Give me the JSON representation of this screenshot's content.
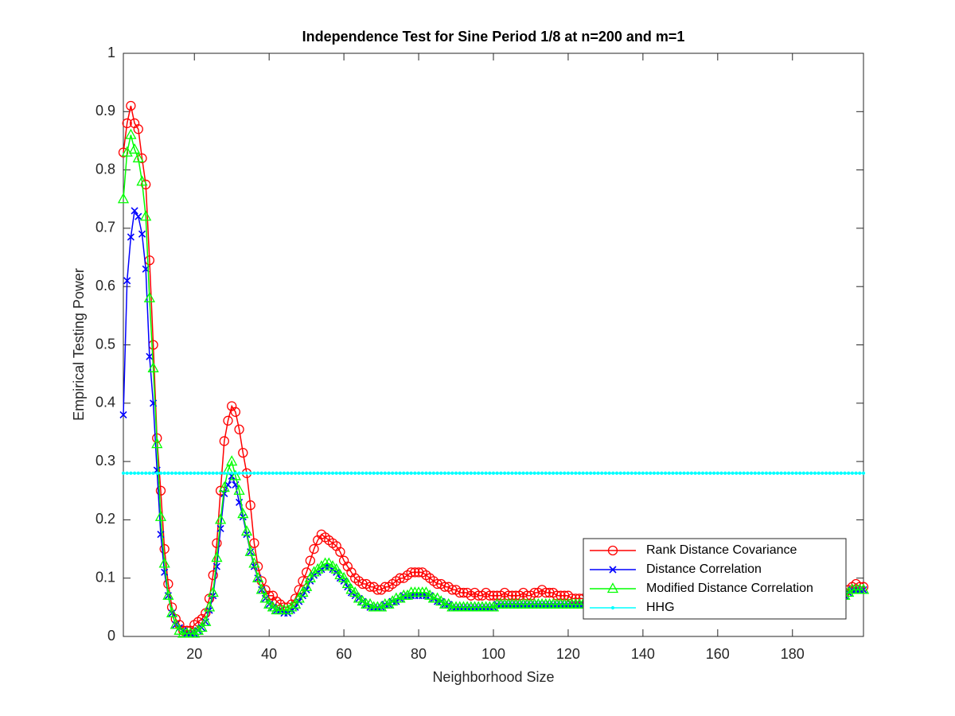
{
  "chart_data": {
    "type": "line",
    "title": "Independence Test for Sine Period 1/8 at n=200 and m=1",
    "xlabel": "Neighborhood Size",
    "ylabel": "Empirical Testing Power",
    "xlim": [
      1,
      199
    ],
    "ylim": [
      0,
      1
    ],
    "xticks": [
      20,
      40,
      60,
      80,
      100,
      120,
      140,
      160,
      180
    ],
    "yticks": [
      0,
      0.1,
      0.2,
      0.3,
      0.4,
      0.5,
      0.6,
      0.7,
      0.8,
      0.9,
      1
    ],
    "legend": "southeast",
    "x": [
      1,
      2,
      3,
      4,
      5,
      6,
      7,
      8,
      9,
      10,
      11,
      12,
      13,
      14,
      15,
      16,
      17,
      18,
      19,
      20,
      21,
      22,
      23,
      24,
      25,
      26,
      27,
      28,
      29,
      30,
      31,
      32,
      33,
      34,
      35,
      36,
      37,
      38,
      39,
      40,
      41,
      42,
      43,
      44,
      45,
      46,
      47,
      48,
      49,
      50,
      51,
      52,
      53,
      54,
      55,
      56,
      57,
      58,
      59,
      60,
      61,
      62,
      63,
      64,
      65,
      66,
      67,
      68,
      69,
      70,
      71,
      72,
      73,
      74,
      75,
      76,
      77,
      78,
      79,
      80,
      81,
      82,
      83,
      84,
      85,
      86,
      87,
      88,
      89,
      90,
      91,
      92,
      93,
      94,
      95,
      96,
      97,
      98,
      99,
      100,
      101,
      102,
      103,
      104,
      105,
      106,
      107,
      108,
      109,
      110,
      111,
      112,
      113,
      114,
      115,
      116,
      117,
      118,
      119,
      120,
      121,
      122,
      123,
      124,
      125,
      126,
      127,
      128,
      129,
      130,
      131,
      132,
      133,
      134,
      135,
      136,
      137,
      138,
      139,
      140,
      141,
      142,
      143,
      144,
      145,
      146,
      147,
      148,
      149,
      150,
      151,
      152,
      153,
      154,
      155,
      156,
      157,
      158,
      159,
      160,
      161,
      162,
      163,
      164,
      165,
      166,
      167,
      168,
      169,
      170,
      171,
      172,
      173,
      174,
      175,
      176,
      177,
      178,
      179,
      180,
      181,
      182,
      183,
      184,
      185,
      186,
      187,
      188,
      189,
      190,
      191,
      192,
      193,
      194,
      195,
      196,
      197,
      198,
      199
    ],
    "series": [
      {
        "name": "Rank Distance Covariance",
        "color": "#ff0000",
        "marker": "circle",
        "values": [
          0.83,
          0.88,
          0.91,
          0.88,
          0.87,
          0.82,
          0.775,
          0.645,
          0.5,
          0.34,
          0.25,
          0.15,
          0.09,
          0.05,
          0.03,
          0.02,
          0.01,
          0.01,
          0.01,
          0.02,
          0.025,
          0.03,
          0.04,
          0.065,
          0.105,
          0.16,
          0.25,
          0.335,
          0.37,
          0.395,
          0.385,
          0.355,
          0.315,
          0.28,
          0.225,
          0.16,
          0.12,
          0.095,
          0.08,
          0.07,
          0.07,
          0.06,
          0.055,
          0.05,
          0.05,
          0.055,
          0.065,
          0.08,
          0.095,
          0.11,
          0.13,
          0.15,
          0.165,
          0.175,
          0.17,
          0.165,
          0.16,
          0.155,
          0.145,
          0.13,
          0.12,
          0.11,
          0.1,
          0.095,
          0.09,
          0.09,
          0.085,
          0.085,
          0.08,
          0.08,
          0.085,
          0.085,
          0.09,
          0.095,
          0.1,
          0.1,
          0.105,
          0.11,
          0.11,
          0.11,
          0.11,
          0.105,
          0.1,
          0.095,
          0.09,
          0.09,
          0.085,
          0.085,
          0.08,
          0.08,
          0.075,
          0.075,
          0.075,
          0.07,
          0.075,
          0.07,
          0.07,
          0.075,
          0.07,
          0.07,
          0.07,
          0.07,
          0.075,
          0.07,
          0.07,
          0.07,
          0.07,
          0.075,
          0.07,
          0.07,
          0.075,
          0.075,
          0.08,
          0.075,
          0.075,
          0.075,
          0.07,
          0.07,
          0.07,
          0.07,
          0.065,
          0.065,
          0.065,
          0.065,
          0.06,
          0.06,
          0.06,
          0.06,
          0.06,
          0.06,
          0.06,
          0.06,
          0.06,
          0.06,
          0.06,
          0.06,
          0.06,
          0.06,
          0.06,
          0.06,
          0.06,
          0.06,
          0.06,
          0.06,
          0.06,
          0.06,
          0.06,
          0.06,
          0.06,
          0.06,
          0.06,
          0.06,
          0.06,
          0.06,
          0.06,
          0.06,
          0.06,
          0.06,
          0.06,
          0.06,
          0.065,
          0.065,
          0.065,
          0.065,
          0.065,
          0.065,
          0.065,
          0.065,
          0.065,
          0.065,
          0.065,
          0.065,
          0.065,
          0.065,
          0.065,
          0.065,
          0.065,
          0.065,
          0.065,
          0.065,
          0.07,
          0.07,
          0.07,
          0.07,
          0.07,
          0.07,
          0.07,
          0.07,
          0.07,
          0.07,
          0.07,
          0.07,
          0.075,
          0.075,
          0.08,
          0.085,
          0.09,
          0.085,
          0.085
        ]
      },
      {
        "name": "Distance Correlation",
        "color": "#0000ff",
        "marker": "cross",
        "values": [
          0.38,
          0.61,
          0.685,
          0.73,
          0.72,
          0.69,
          0.63,
          0.48,
          0.4,
          0.285,
          0.175,
          0.11,
          0.07,
          0.04,
          0.02,
          0.015,
          0.01,
          0.005,
          0.005,
          0.005,
          0.01,
          0.015,
          0.025,
          0.045,
          0.07,
          0.12,
          0.185,
          0.245,
          0.26,
          0.275,
          0.26,
          0.23,
          0.205,
          0.175,
          0.145,
          0.12,
          0.1,
          0.08,
          0.065,
          0.055,
          0.05,
          0.045,
          0.045,
          0.04,
          0.04,
          0.045,
          0.05,
          0.06,
          0.07,
          0.08,
          0.095,
          0.105,
          0.11,
          0.115,
          0.12,
          0.12,
          0.115,
          0.11,
          0.1,
          0.095,
          0.085,
          0.075,
          0.07,
          0.065,
          0.06,
          0.055,
          0.05,
          0.05,
          0.05,
          0.05,
          0.055,
          0.055,
          0.06,
          0.06,
          0.065,
          0.07,
          0.07,
          0.07,
          0.07,
          0.07,
          0.07,
          0.07,
          0.07,
          0.065,
          0.06,
          0.06,
          0.055,
          0.055,
          0.05,
          0.05,
          0.05,
          0.05,
          0.05,
          0.05,
          0.05,
          0.05,
          0.05,
          0.05,
          0.05,
          0.05,
          0.055,
          0.055,
          0.055,
          0.055,
          0.055,
          0.055,
          0.055,
          0.055,
          0.055,
          0.055,
          0.055,
          0.055,
          0.055,
          0.055,
          0.055,
          0.055,
          0.055,
          0.055,
          0.055,
          0.055,
          0.055,
          0.055,
          0.055,
          0.055,
          0.055,
          0.055,
          0.055,
          0.055,
          0.055,
          0.055,
          0.06,
          0.06,
          0.06,
          0.06,
          0.06,
          0.06,
          0.06,
          0.06,
          0.06,
          0.06,
          0.06,
          0.06,
          0.06,
          0.06,
          0.06,
          0.06,
          0.06,
          0.06,
          0.06,
          0.06,
          0.06,
          0.06,
          0.06,
          0.06,
          0.06,
          0.06,
          0.06,
          0.06,
          0.06,
          0.06,
          0.06,
          0.06,
          0.06,
          0.06,
          0.06,
          0.06,
          0.06,
          0.06,
          0.06,
          0.06,
          0.06,
          0.06,
          0.06,
          0.06,
          0.06,
          0.06,
          0.06,
          0.06,
          0.06,
          0.06,
          0.06,
          0.06,
          0.06,
          0.06,
          0.06,
          0.06,
          0.06,
          0.06,
          0.06,
          0.06,
          0.06,
          0.065,
          0.065,
          0.07,
          0.075,
          0.08,
          0.08,
          0.08,
          0.08
        ]
      },
      {
        "name": "Modified Distance Correlation",
        "color": "#00ff00",
        "marker": "triangle",
        "values": [
          0.75,
          0.83,
          0.86,
          0.835,
          0.82,
          0.78,
          0.72,
          0.58,
          0.46,
          0.33,
          0.205,
          0.125,
          0.07,
          0.04,
          0.02,
          0.01,
          0.005,
          0.005,
          0.005,
          0.005,
          0.01,
          0.015,
          0.025,
          0.05,
          0.075,
          0.135,
          0.2,
          0.255,
          0.285,
          0.3,
          0.275,
          0.25,
          0.21,
          0.18,
          0.145,
          0.125,
          0.1,
          0.08,
          0.065,
          0.055,
          0.05,
          0.045,
          0.045,
          0.045,
          0.045,
          0.05,
          0.055,
          0.065,
          0.075,
          0.085,
          0.1,
          0.11,
          0.115,
          0.12,
          0.125,
          0.125,
          0.12,
          0.115,
          0.105,
          0.1,
          0.09,
          0.08,
          0.075,
          0.065,
          0.06,
          0.055,
          0.055,
          0.05,
          0.05,
          0.05,
          0.055,
          0.055,
          0.06,
          0.065,
          0.065,
          0.07,
          0.07,
          0.075,
          0.075,
          0.075,
          0.075,
          0.075,
          0.07,
          0.065,
          0.065,
          0.06,
          0.055,
          0.055,
          0.05,
          0.05,
          0.05,
          0.05,
          0.05,
          0.05,
          0.05,
          0.05,
          0.05,
          0.05,
          0.05,
          0.05,
          0.055,
          0.055,
          0.055,
          0.055,
          0.055,
          0.055,
          0.055,
          0.055,
          0.055,
          0.055,
          0.055,
          0.055,
          0.055,
          0.055,
          0.055,
          0.055,
          0.055,
          0.055,
          0.055,
          0.055,
          0.055,
          0.055,
          0.055,
          0.055,
          0.055,
          0.055,
          0.055,
          0.055,
          0.055,
          0.055,
          0.06,
          0.06,
          0.06,
          0.06,
          0.06,
          0.06,
          0.06,
          0.06,
          0.06,
          0.06,
          0.06,
          0.06,
          0.06,
          0.06,
          0.06,
          0.06,
          0.06,
          0.06,
          0.06,
          0.06,
          0.06,
          0.06,
          0.06,
          0.06,
          0.06,
          0.06,
          0.06,
          0.06,
          0.06,
          0.06,
          0.06,
          0.06,
          0.06,
          0.06,
          0.06,
          0.06,
          0.06,
          0.06,
          0.06,
          0.06,
          0.06,
          0.06,
          0.06,
          0.06,
          0.06,
          0.06,
          0.06,
          0.06,
          0.06,
          0.06,
          0.06,
          0.06,
          0.06,
          0.06,
          0.06,
          0.06,
          0.06,
          0.06,
          0.06,
          0.06,
          0.06,
          0.065,
          0.07,
          0.07,
          0.075,
          0.08,
          0.08,
          0.08,
          0.08
        ]
      },
      {
        "name": "HHG",
        "color": "#00ffff",
        "marker": "dot",
        "values": [
          0.28,
          0.28,
          0.28,
          0.28,
          0.28,
          0.28,
          0.28,
          0.28,
          0.28,
          0.28,
          0.28,
          0.28,
          0.28,
          0.28,
          0.28,
          0.28,
          0.28,
          0.28,
          0.28,
          0.28,
          0.28,
          0.28,
          0.28,
          0.28,
          0.28,
          0.28,
          0.28,
          0.28,
          0.28,
          0.28,
          0.28,
          0.28,
          0.28,
          0.28,
          0.28,
          0.28,
          0.28,
          0.28,
          0.28,
          0.28,
          0.28,
          0.28,
          0.28,
          0.28,
          0.28,
          0.28,
          0.28,
          0.28,
          0.28,
          0.28,
          0.28,
          0.28,
          0.28,
          0.28,
          0.28,
          0.28,
          0.28,
          0.28,
          0.28,
          0.28,
          0.28,
          0.28,
          0.28,
          0.28,
          0.28,
          0.28,
          0.28,
          0.28,
          0.28,
          0.28,
          0.28,
          0.28,
          0.28,
          0.28,
          0.28,
          0.28,
          0.28,
          0.28,
          0.28,
          0.28,
          0.28,
          0.28,
          0.28,
          0.28,
          0.28,
          0.28,
          0.28,
          0.28,
          0.28,
          0.28,
          0.28,
          0.28,
          0.28,
          0.28,
          0.28,
          0.28,
          0.28,
          0.28,
          0.28,
          0.28,
          0.28,
          0.28,
          0.28,
          0.28,
          0.28,
          0.28,
          0.28,
          0.28,
          0.28,
          0.28,
          0.28,
          0.28,
          0.28,
          0.28,
          0.28,
          0.28,
          0.28,
          0.28,
          0.28,
          0.28,
          0.28,
          0.28,
          0.28,
          0.28,
          0.28,
          0.28,
          0.28,
          0.28,
          0.28,
          0.28,
          0.28,
          0.28,
          0.28,
          0.28,
          0.28,
          0.28,
          0.28,
          0.28,
          0.28,
          0.28,
          0.28,
          0.28,
          0.28,
          0.28,
          0.28,
          0.28,
          0.28,
          0.28,
          0.28,
          0.28,
          0.28,
          0.28,
          0.28,
          0.28,
          0.28,
          0.28,
          0.28,
          0.28,
          0.28,
          0.28,
          0.28,
          0.28,
          0.28,
          0.28,
          0.28,
          0.28,
          0.28,
          0.28,
          0.28,
          0.28,
          0.28,
          0.28,
          0.28,
          0.28,
          0.28,
          0.28,
          0.28,
          0.28,
          0.28,
          0.28,
          0.28,
          0.28,
          0.28,
          0.28,
          0.28,
          0.28,
          0.28,
          0.28,
          0.28,
          0.28,
          0.28,
          0.28,
          0.28,
          0.28,
          0.28,
          0.28,
          0.28,
          0.28,
          0.28
        ]
      }
    ]
  }
}
